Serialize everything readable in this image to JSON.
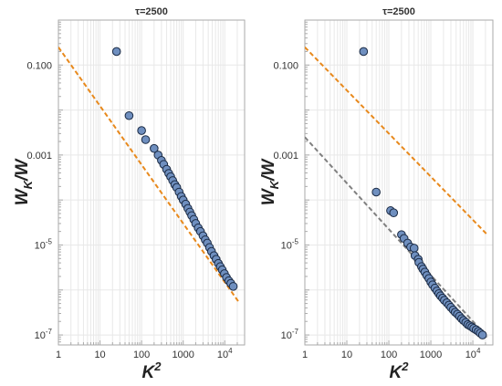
{
  "chart_data": [
    {
      "type": "scatter",
      "title": "τ=2500",
      "xlabel": "K",
      "xlabel_sup": "2",
      "ylabel_main": "W",
      "ylabel_sub": "K",
      "ylabel_rest": "/W",
      "x_scale": "log",
      "y_scale": "log",
      "xlim": [
        1,
        30000
      ],
      "ylim": [
        6e-08,
        1
      ],
      "grid": true,
      "x_ticks": [
        {
          "value": 1,
          "label": "1"
        },
        {
          "value": 10,
          "label": "10"
        },
        {
          "value": 100,
          "label": "100"
        },
        {
          "value": 1000,
          "label": "1000"
        },
        {
          "value": 10000,
          "base": "10",
          "exp": "4"
        }
      ],
      "y_ticks": [
        {
          "value": 0.1,
          "label": "0.100"
        },
        {
          "value": 0.001,
          "label": "0.001"
        },
        {
          "value": 1e-05,
          "base": "10",
          "exp": "-5"
        },
        {
          "value": 1e-07,
          "base": "10",
          "exp": "-7"
        }
      ],
      "series": [
        {
          "type": "scatter",
          "color": "#6f8fbf",
          "x": [
            25,
            50,
            100,
            125,
            200,
            250,
            300,
            340,
            400,
            450,
            500,
            560,
            630,
            700,
            800,
            900,
            1000,
            1150,
            1300,
            1450,
            1600,
            1800,
            2000,
            2300,
            2600,
            3000,
            3400,
            3800,
            4300,
            4800,
            5500,
            6200,
            7000,
            7800,
            8700,
            9800,
            11000,
            12500,
            14000,
            16000
          ],
          "y": [
            0.2,
            0.0075,
            0.0035,
            0.0022,
            0.0014,
            0.001,
            0.00076,
            0.00062,
            0.00048,
            0.00039,
            0.00033,
            0.00027,
            0.00022,
            0.00019,
            0.00015,
            0.00012,
            0.0001,
            8.1e-05,
            6.5e-05,
            5.4e-05,
            4.5e-05,
            3.7e-05,
            3e-05,
            2.4e-05,
            2e-05,
            1.6e-05,
            1.3e-05,
            1.1e-05,
            8.8e-06,
            7.2e-06,
            5.8e-06,
            4.8e-06,
            3.9e-06,
            3.3e-06,
            2.8e-06,
            2.3e-06,
            1.9e-06,
            1.6e-06,
            1.4e-06,
            1.2e-06
          ]
        },
        {
          "type": "line",
          "color": "#e8891c",
          "dash": "dashed",
          "x": [
            1,
            22000
          ],
          "y": [
            0.25,
            5.3e-07
          ]
        }
      ]
    },
    {
      "type": "scatter",
      "title": "τ=2500",
      "xlabel": "K",
      "xlabel_sup": "2",
      "ylabel_main": "W",
      "ylabel_sub": "K",
      "ylabel_rest": "/W",
      "x_scale": "log",
      "y_scale": "log",
      "xlim": [
        1,
        30000
      ],
      "ylim": [
        6e-08,
        1
      ],
      "grid": true,
      "x_ticks": [
        {
          "value": 1,
          "label": "1"
        },
        {
          "value": 10,
          "label": "10"
        },
        {
          "value": 100,
          "label": "100"
        },
        {
          "value": 1000,
          "label": "1000"
        },
        {
          "value": 10000,
          "base": "10",
          "exp": "4"
        }
      ],
      "y_ticks": [
        {
          "value": 0.1,
          "label": "0.100"
        },
        {
          "value": 0.001,
          "label": "0.001"
        },
        {
          "value": 1e-05,
          "base": "10",
          "exp": "-5"
        },
        {
          "value": 1e-07,
          "base": "10",
          "exp": "-7"
        }
      ],
      "series": [
        {
          "type": "scatter",
          "color": "#6f8fbf",
          "x": [
            25,
            50,
            110,
            130,
            200,
            230,
            280,
            330,
            400,
            420,
            500,
            520,
            600,
            650,
            720,
            800,
            900,
            1000,
            1100,
            1250,
            1400,
            1550,
            1700,
            1900,
            2100,
            2400,
            2700,
            3000,
            3400,
            3800,
            4300,
            4800,
            5400,
            6000,
            6800,
            7600,
            8500,
            9500,
            10500,
            12000,
            13500,
            15000,
            17000
          ],
          "y": [
            0.2,
            0.00015,
            5.8e-05,
            5.2e-05,
            1.7e-05,
            1.4e-05,
            1.1e-05,
            9e-06,
            8.5e-06,
            5.8e-06,
            4.8e-06,
            4.1e-06,
            3.3e-06,
            2.9e-06,
            2.5e-06,
            2.1e-06,
            1.8e-06,
            1.5e-06,
            1.3e-06,
            1.1e-06,
            9.5e-07,
            8.3e-07,
            7.4e-07,
            6.6e-07,
            5.9e-07,
            5.2e-07,
            4.6e-07,
            4.1e-07,
            3.6e-07,
            3.2e-07,
            2.9e-07,
            2.6e-07,
            2.3e-07,
            2.1e-07,
            1.9e-07,
            1.7e-07,
            1.6e-07,
            1.5e-07,
            1.4e-07,
            1.3e-07,
            1.2e-07,
            1.1e-07,
            1e-07
          ]
        },
        {
          "type": "line",
          "color": "#e8891c",
          "dash": "dashed",
          "x": [
            1,
            22000
          ],
          "y": [
            0.25,
            1.7e-05
          ]
        },
        {
          "type": "line",
          "color": "#808080",
          "dash": "dashed",
          "x": [
            1,
            22000
          ],
          "y": [
            0.0025,
            9e-08
          ]
        }
      ]
    }
  ]
}
